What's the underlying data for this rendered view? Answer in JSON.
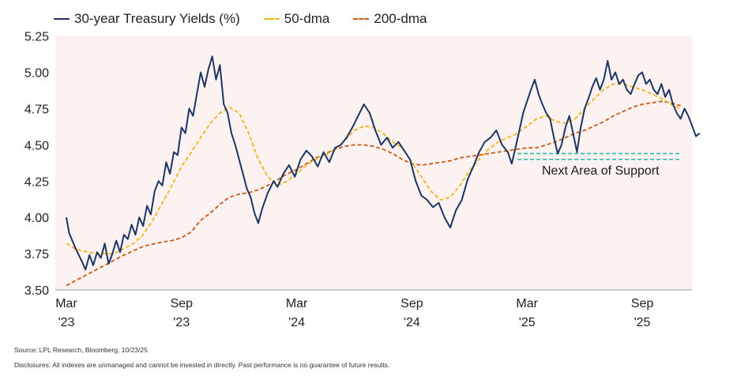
{
  "legend": {
    "series1": "30-year Treasury Yields (%)",
    "series2": "50-dma",
    "series3": "200-dma"
  },
  "annotation": "Next Area of Support",
  "footer": {
    "source": "Source: LPL Research, Bloomberg, 10/23/25",
    "disclosure": "Disclosures: All indexes are unmanaged and cannot be invested in directly. Past performance is no guarantee of future results."
  },
  "colors": {
    "yield": "#1b3564",
    "dma50": "#f4b41a",
    "dma200": "#cc5a14",
    "support": "#2ab7a9",
    "background": "#fdf2f2"
  },
  "chart_data": {
    "type": "line",
    "x_unit": "months since Mar 2023",
    "x_ticks": [
      {
        "x": 0,
        "line1": "Mar",
        "line2": "'23"
      },
      {
        "x": 6,
        "line1": "Sep",
        "line2": "'23"
      },
      {
        "x": 12,
        "line1": "Mar",
        "line2": "'24"
      },
      {
        "x": 18,
        "line1": "Sep",
        "line2": "'24"
      },
      {
        "x": 24,
        "line1": "Mar",
        "line2": "'25"
      },
      {
        "x": 30,
        "line1": "Sep",
        "line2": "'25"
      }
    ],
    "y_ticks": [
      "3.50",
      "3.75",
      "4.00",
      "4.25",
      "4.50",
      "4.75",
      "5.00",
      "5.25"
    ],
    "xlim": [
      0,
      32
    ],
    "ylim": [
      3.5,
      5.25
    ],
    "support_levels": [
      4.44,
      4.4
    ],
    "support_range_x": [
      23.5,
      32
    ],
    "series": [
      {
        "key": "yield",
        "name": "30-year Treasury Yields (%)",
        "style": "solid",
        "points": [
          [
            0,
            4.0
          ],
          [
            0.15,
            3.89
          ],
          [
            0.5,
            3.78
          ],
          [
            0.8,
            3.7
          ],
          [
            1.0,
            3.64
          ],
          [
            1.2,
            3.74
          ],
          [
            1.4,
            3.67
          ],
          [
            1.6,
            3.76
          ],
          [
            1.8,
            3.72
          ],
          [
            2.0,
            3.82
          ],
          [
            2.2,
            3.68
          ],
          [
            2.4,
            3.75
          ],
          [
            2.6,
            3.84
          ],
          [
            2.8,
            3.76
          ],
          [
            3.0,
            3.88
          ],
          [
            3.2,
            3.85
          ],
          [
            3.4,
            3.95
          ],
          [
            3.6,
            3.88
          ],
          [
            3.8,
            4.0
          ],
          [
            4.0,
            3.94
          ],
          [
            4.2,
            4.08
          ],
          [
            4.4,
            4.02
          ],
          [
            4.6,
            4.18
          ],
          [
            4.8,
            4.25
          ],
          [
            5.0,
            4.22
          ],
          [
            5.2,
            4.38
          ],
          [
            5.4,
            4.3
          ],
          [
            5.6,
            4.45
          ],
          [
            5.8,
            4.43
          ],
          [
            6.0,
            4.62
          ],
          [
            6.2,
            4.58
          ],
          [
            6.4,
            4.75
          ],
          [
            6.6,
            4.7
          ],
          [
            6.8,
            4.85
          ],
          [
            7.0,
            5.0
          ],
          [
            7.2,
            4.9
          ],
          [
            7.4,
            5.02
          ],
          [
            7.6,
            5.11
          ],
          [
            7.8,
            4.95
          ],
          [
            8.0,
            5.05
          ],
          [
            8.2,
            4.78
          ],
          [
            8.4,
            4.72
          ],
          [
            8.6,
            4.58
          ],
          [
            8.8,
            4.5
          ],
          [
            9.0,
            4.4
          ],
          [
            9.2,
            4.3
          ],
          [
            9.4,
            4.2
          ],
          [
            9.6,
            4.14
          ],
          [
            9.8,
            4.03
          ],
          [
            10.0,
            3.96
          ],
          [
            10.2,
            4.06
          ],
          [
            10.5,
            4.17
          ],
          [
            10.8,
            4.25
          ],
          [
            11.0,
            4.21
          ],
          [
            11.3,
            4.3
          ],
          [
            11.6,
            4.36
          ],
          [
            11.9,
            4.28
          ],
          [
            12.2,
            4.4
          ],
          [
            12.5,
            4.46
          ],
          [
            12.8,
            4.42
          ],
          [
            13.1,
            4.35
          ],
          [
            13.4,
            4.45
          ],
          [
            13.7,
            4.38
          ],
          [
            14.0,
            4.48
          ],
          [
            14.3,
            4.5
          ],
          [
            14.6,
            4.55
          ],
          [
            14.9,
            4.62
          ],
          [
            15.2,
            4.7
          ],
          [
            15.5,
            4.78
          ],
          [
            15.8,
            4.72
          ],
          [
            16.1,
            4.6
          ],
          [
            16.4,
            4.5
          ],
          [
            16.7,
            4.55
          ],
          [
            17.0,
            4.48
          ],
          [
            17.3,
            4.52
          ],
          [
            17.6,
            4.46
          ],
          [
            17.9,
            4.4
          ],
          [
            18.2,
            4.25
          ],
          [
            18.5,
            4.15
          ],
          [
            18.8,
            4.12
          ],
          [
            19.1,
            4.07
          ],
          [
            19.4,
            4.1
          ],
          [
            19.7,
            4.0
          ],
          [
            20.0,
            3.93
          ],
          [
            20.3,
            4.05
          ],
          [
            20.6,
            4.12
          ],
          [
            20.9,
            4.26
          ],
          [
            21.2,
            4.35
          ],
          [
            21.5,
            4.45
          ],
          [
            21.8,
            4.52
          ],
          [
            22.1,
            4.55
          ],
          [
            22.4,
            4.6
          ],
          [
            22.7,
            4.5
          ],
          [
            23.0,
            4.45
          ],
          [
            23.2,
            4.37
          ],
          [
            23.4,
            4.48
          ],
          [
            23.6,
            4.6
          ],
          [
            23.8,
            4.72
          ],
          [
            24.0,
            4.8
          ],
          [
            24.2,
            4.88
          ],
          [
            24.4,
            4.95
          ],
          [
            24.6,
            4.85
          ],
          [
            24.8,
            4.78
          ],
          [
            25.0,
            4.72
          ],
          [
            25.2,
            4.68
          ],
          [
            25.4,
            4.55
          ],
          [
            25.6,
            4.44
          ],
          [
            25.8,
            4.5
          ],
          [
            26.0,
            4.62
          ],
          [
            26.2,
            4.7
          ],
          [
            26.4,
            4.58
          ],
          [
            26.6,
            4.45
          ],
          [
            26.8,
            4.62
          ],
          [
            27.0,
            4.75
          ],
          [
            27.2,
            4.82
          ],
          [
            27.4,
            4.9
          ],
          [
            27.6,
            4.96
          ],
          [
            27.8,
            4.88
          ],
          [
            28.0,
            4.95
          ],
          [
            28.2,
            5.08
          ],
          [
            28.4,
            4.95
          ],
          [
            28.6,
            5.0
          ],
          [
            28.8,
            4.92
          ],
          [
            29.0,
            4.95
          ],
          [
            29.2,
            4.88
          ],
          [
            29.4,
            4.85
          ],
          [
            29.6,
            4.92
          ],
          [
            29.8,
            4.98
          ],
          [
            30.0,
            5.0
          ],
          [
            30.2,
            4.92
          ],
          [
            30.4,
            4.95
          ],
          [
            30.6,
            4.88
          ],
          [
            30.8,
            4.85
          ],
          [
            31.0,
            4.92
          ],
          [
            31.2,
            4.83
          ],
          [
            31.4,
            4.88
          ],
          [
            31.6,
            4.78
          ],
          [
            31.8,
            4.72
          ],
          [
            32.0,
            4.68
          ],
          [
            32.2,
            4.75
          ],
          [
            32.4,
            4.7
          ],
          [
            32.6,
            4.63
          ],
          [
            32.8,
            4.56
          ],
          [
            33.0,
            4.58
          ]
        ]
      },
      {
        "key": "dma50",
        "name": "50-dma",
        "style": "dash-yellow",
        "points": [
          [
            0,
            3.82
          ],
          [
            0.5,
            3.78
          ],
          [
            1.5,
            3.75
          ],
          [
            2.5,
            3.75
          ],
          [
            3.5,
            3.82
          ],
          [
            4.0,
            3.88
          ],
          [
            4.5,
            3.98
          ],
          [
            5.0,
            4.1
          ],
          [
            5.5,
            4.22
          ],
          [
            6.0,
            4.35
          ],
          [
            6.5,
            4.45
          ],
          [
            7.0,
            4.55
          ],
          [
            7.5,
            4.65
          ],
          [
            8.0,
            4.72
          ],
          [
            8.5,
            4.76
          ],
          [
            9.0,
            4.72
          ],
          [
            9.5,
            4.58
          ],
          [
            10.0,
            4.4
          ],
          [
            10.5,
            4.28
          ],
          [
            11.0,
            4.22
          ],
          [
            11.5,
            4.25
          ],
          [
            12.0,
            4.3
          ],
          [
            12.5,
            4.36
          ],
          [
            13.0,
            4.4
          ],
          [
            13.5,
            4.43
          ],
          [
            14.0,
            4.47
          ],
          [
            14.5,
            4.53
          ],
          [
            15.0,
            4.6
          ],
          [
            15.5,
            4.63
          ],
          [
            16.0,
            4.62
          ],
          [
            16.5,
            4.58
          ],
          [
            17.0,
            4.52
          ],
          [
            17.5,
            4.48
          ],
          [
            18.0,
            4.38
          ],
          [
            18.5,
            4.28
          ],
          [
            19.0,
            4.18
          ],
          [
            19.5,
            4.12
          ],
          [
            20.0,
            4.14
          ],
          [
            20.5,
            4.22
          ],
          [
            21.0,
            4.32
          ],
          [
            21.5,
            4.4
          ],
          [
            22.0,
            4.47
          ],
          [
            22.5,
            4.52
          ],
          [
            23.0,
            4.55
          ],
          [
            23.5,
            4.58
          ],
          [
            24.0,
            4.63
          ],
          [
            24.5,
            4.68
          ],
          [
            25.0,
            4.7
          ],
          [
            25.5,
            4.66
          ],
          [
            26.0,
            4.65
          ],
          [
            26.5,
            4.68
          ],
          [
            27.0,
            4.75
          ],
          [
            27.5,
            4.82
          ],
          [
            28.0,
            4.88
          ],
          [
            28.5,
            4.92
          ],
          [
            29.0,
            4.92
          ],
          [
            29.5,
            4.9
          ],
          [
            30.0,
            4.88
          ],
          [
            30.5,
            4.85
          ],
          [
            31.0,
            4.82
          ],
          [
            31.5,
            4.78
          ],
          [
            32.0,
            4.75
          ]
        ]
      },
      {
        "key": "dma200",
        "name": "200-dma",
        "style": "dash-orange",
        "points": [
          [
            0,
            3.53
          ],
          [
            1.0,
            3.6
          ],
          [
            2.0,
            3.67
          ],
          [
            3.0,
            3.74
          ],
          [
            4.0,
            3.8
          ],
          [
            5.0,
            3.83
          ],
          [
            5.5,
            3.84
          ],
          [
            6.0,
            3.86
          ],
          [
            6.5,
            3.9
          ],
          [
            7.0,
            3.98
          ],
          [
            7.5,
            4.03
          ],
          [
            8.0,
            4.09
          ],
          [
            8.5,
            4.14
          ],
          [
            9.0,
            4.16
          ],
          [
            9.5,
            4.17
          ],
          [
            10.0,
            4.19
          ],
          [
            10.5,
            4.22
          ],
          [
            11.0,
            4.26
          ],
          [
            11.5,
            4.3
          ],
          [
            12.0,
            4.33
          ],
          [
            12.5,
            4.37
          ],
          [
            13.0,
            4.41
          ],
          [
            13.5,
            4.44
          ],
          [
            14.0,
            4.47
          ],
          [
            14.5,
            4.49
          ],
          [
            15.0,
            4.5
          ],
          [
            15.5,
            4.5
          ],
          [
            16.0,
            4.49
          ],
          [
            16.5,
            4.47
          ],
          [
            17.0,
            4.44
          ],
          [
            17.5,
            4.4
          ],
          [
            18.0,
            4.37
          ],
          [
            18.5,
            4.36
          ],
          [
            19.0,
            4.37
          ],
          [
            19.5,
            4.38
          ],
          [
            20.0,
            4.39
          ],
          [
            20.5,
            4.41
          ],
          [
            21.0,
            4.42
          ],
          [
            21.5,
            4.43
          ],
          [
            22.0,
            4.44
          ],
          [
            22.5,
            4.45
          ],
          [
            23.0,
            4.46
          ],
          [
            23.5,
            4.47
          ],
          [
            24.0,
            4.48
          ],
          [
            24.5,
            4.48
          ],
          [
            25.0,
            4.5
          ],
          [
            25.5,
            4.52
          ],
          [
            26.0,
            4.55
          ],
          [
            26.5,
            4.58
          ],
          [
            27.0,
            4.6
          ],
          [
            27.5,
            4.63
          ],
          [
            28.0,
            4.66
          ],
          [
            28.5,
            4.7
          ],
          [
            29.0,
            4.73
          ],
          [
            29.5,
            4.76
          ],
          [
            30.0,
            4.78
          ],
          [
            30.5,
            4.79
          ],
          [
            31.0,
            4.8
          ],
          [
            31.5,
            4.79
          ],
          [
            32.0,
            4.77
          ]
        ]
      }
    ]
  }
}
